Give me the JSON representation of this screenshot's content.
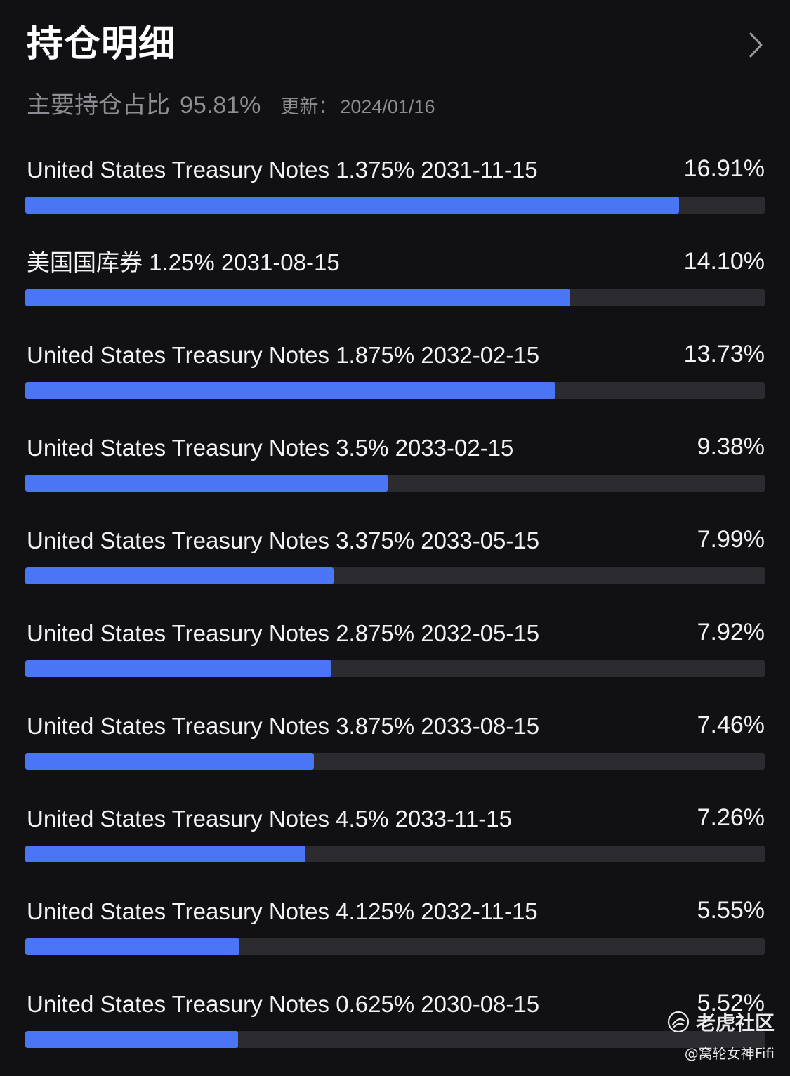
{
  "header": {
    "title": "持仓明细",
    "chevron_icon": "chevron-right-icon"
  },
  "summary": {
    "main_label": "主要持仓占比",
    "main_value": "95.81%",
    "updated_label": "更新：",
    "updated_value": "2024/01/16"
  },
  "colors": {
    "background": "#111114",
    "bar_fill": "#4a76f5",
    "bar_track": "#2c2c30",
    "muted_text": "#8d8d93"
  },
  "holdings": [
    {
      "name": "United States Treasury Notes 1.375% 2031-11-15",
      "percent": "16.91%",
      "bar_fraction": 0.884
    },
    {
      "name": "美国国库券 1.25% 2031-08-15",
      "percent": "14.10%",
      "bar_fraction": 0.737
    },
    {
      "name": "United States Treasury Notes 1.875% 2032-02-15",
      "percent": "13.73%",
      "bar_fraction": 0.717
    },
    {
      "name": "United States Treasury Notes 3.5% 2033-02-15",
      "percent": "9.38%",
      "bar_fraction": 0.49
    },
    {
      "name": "United States Treasury Notes 3.375% 2033-05-15",
      "percent": "7.99%",
      "bar_fraction": 0.417
    },
    {
      "name": "United States Treasury Notes 2.875% 2032-05-15",
      "percent": "7.92%",
      "bar_fraction": 0.414
    },
    {
      "name": "United States Treasury Notes 3.875% 2033-08-15",
      "percent": "7.46%",
      "bar_fraction": 0.39
    },
    {
      "name": "United States Treasury Notes 4.5% 2033-11-15",
      "percent": "7.26%",
      "bar_fraction": 0.379
    },
    {
      "name": "United States Treasury Notes 4.125% 2032-11-15",
      "percent": "5.55%",
      "bar_fraction": 0.29
    },
    {
      "name": "United States Treasury Notes 0.625% 2030-08-15",
      "percent": "5.52%",
      "bar_fraction": 0.288
    }
  ],
  "watermark": {
    "name": "老虎社区",
    "author": "@窝轮女神Fifi",
    "logo_icon": "tiger-logo-icon"
  }
}
